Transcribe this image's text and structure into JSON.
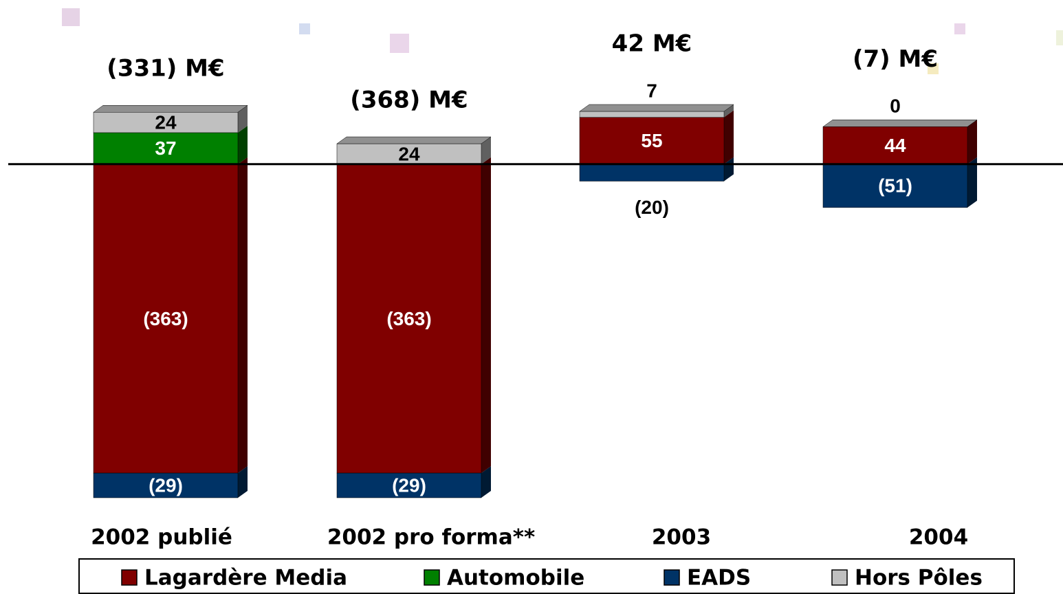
{
  "chart_data": {
    "type": "bar",
    "stacked": true,
    "categories": [
      "2002 publié",
      "2002 pro forma**",
      "2003",
      "2004"
    ],
    "series": [
      {
        "name": "Lagardère Media",
        "color": "#800000",
        "values": [
          -363,
          -363,
          55,
          44
        ],
        "value_labels": [
          "(363)",
          "(363)",
          "55",
          "44"
        ]
      },
      {
        "name": "Automobile",
        "color": "#008000",
        "values": [
          37,
          null,
          null,
          null
        ],
        "value_labels": [
          "37",
          null,
          null,
          null
        ]
      },
      {
        "name": "EADS",
        "color": "#003366",
        "values": [
          -29,
          -29,
          -20,
          -51
        ],
        "value_labels": [
          "(29)",
          "(29)",
          "(20)",
          "(51)"
        ]
      },
      {
        "name": "Hors Pôles",
        "color": "#c0c0c0",
        "values": [
          24,
          24,
          7,
          0
        ],
        "value_labels": [
          "24",
          "24",
          "7",
          "0"
        ]
      }
    ],
    "totals": {
      "values": [
        -331,
        -368,
        42,
        -7
      ],
      "value_labels": [
        "(331) M€",
        "(368) M€",
        "42 M€",
        "(7) M€"
      ]
    },
    "legend": "bottom"
  }
}
